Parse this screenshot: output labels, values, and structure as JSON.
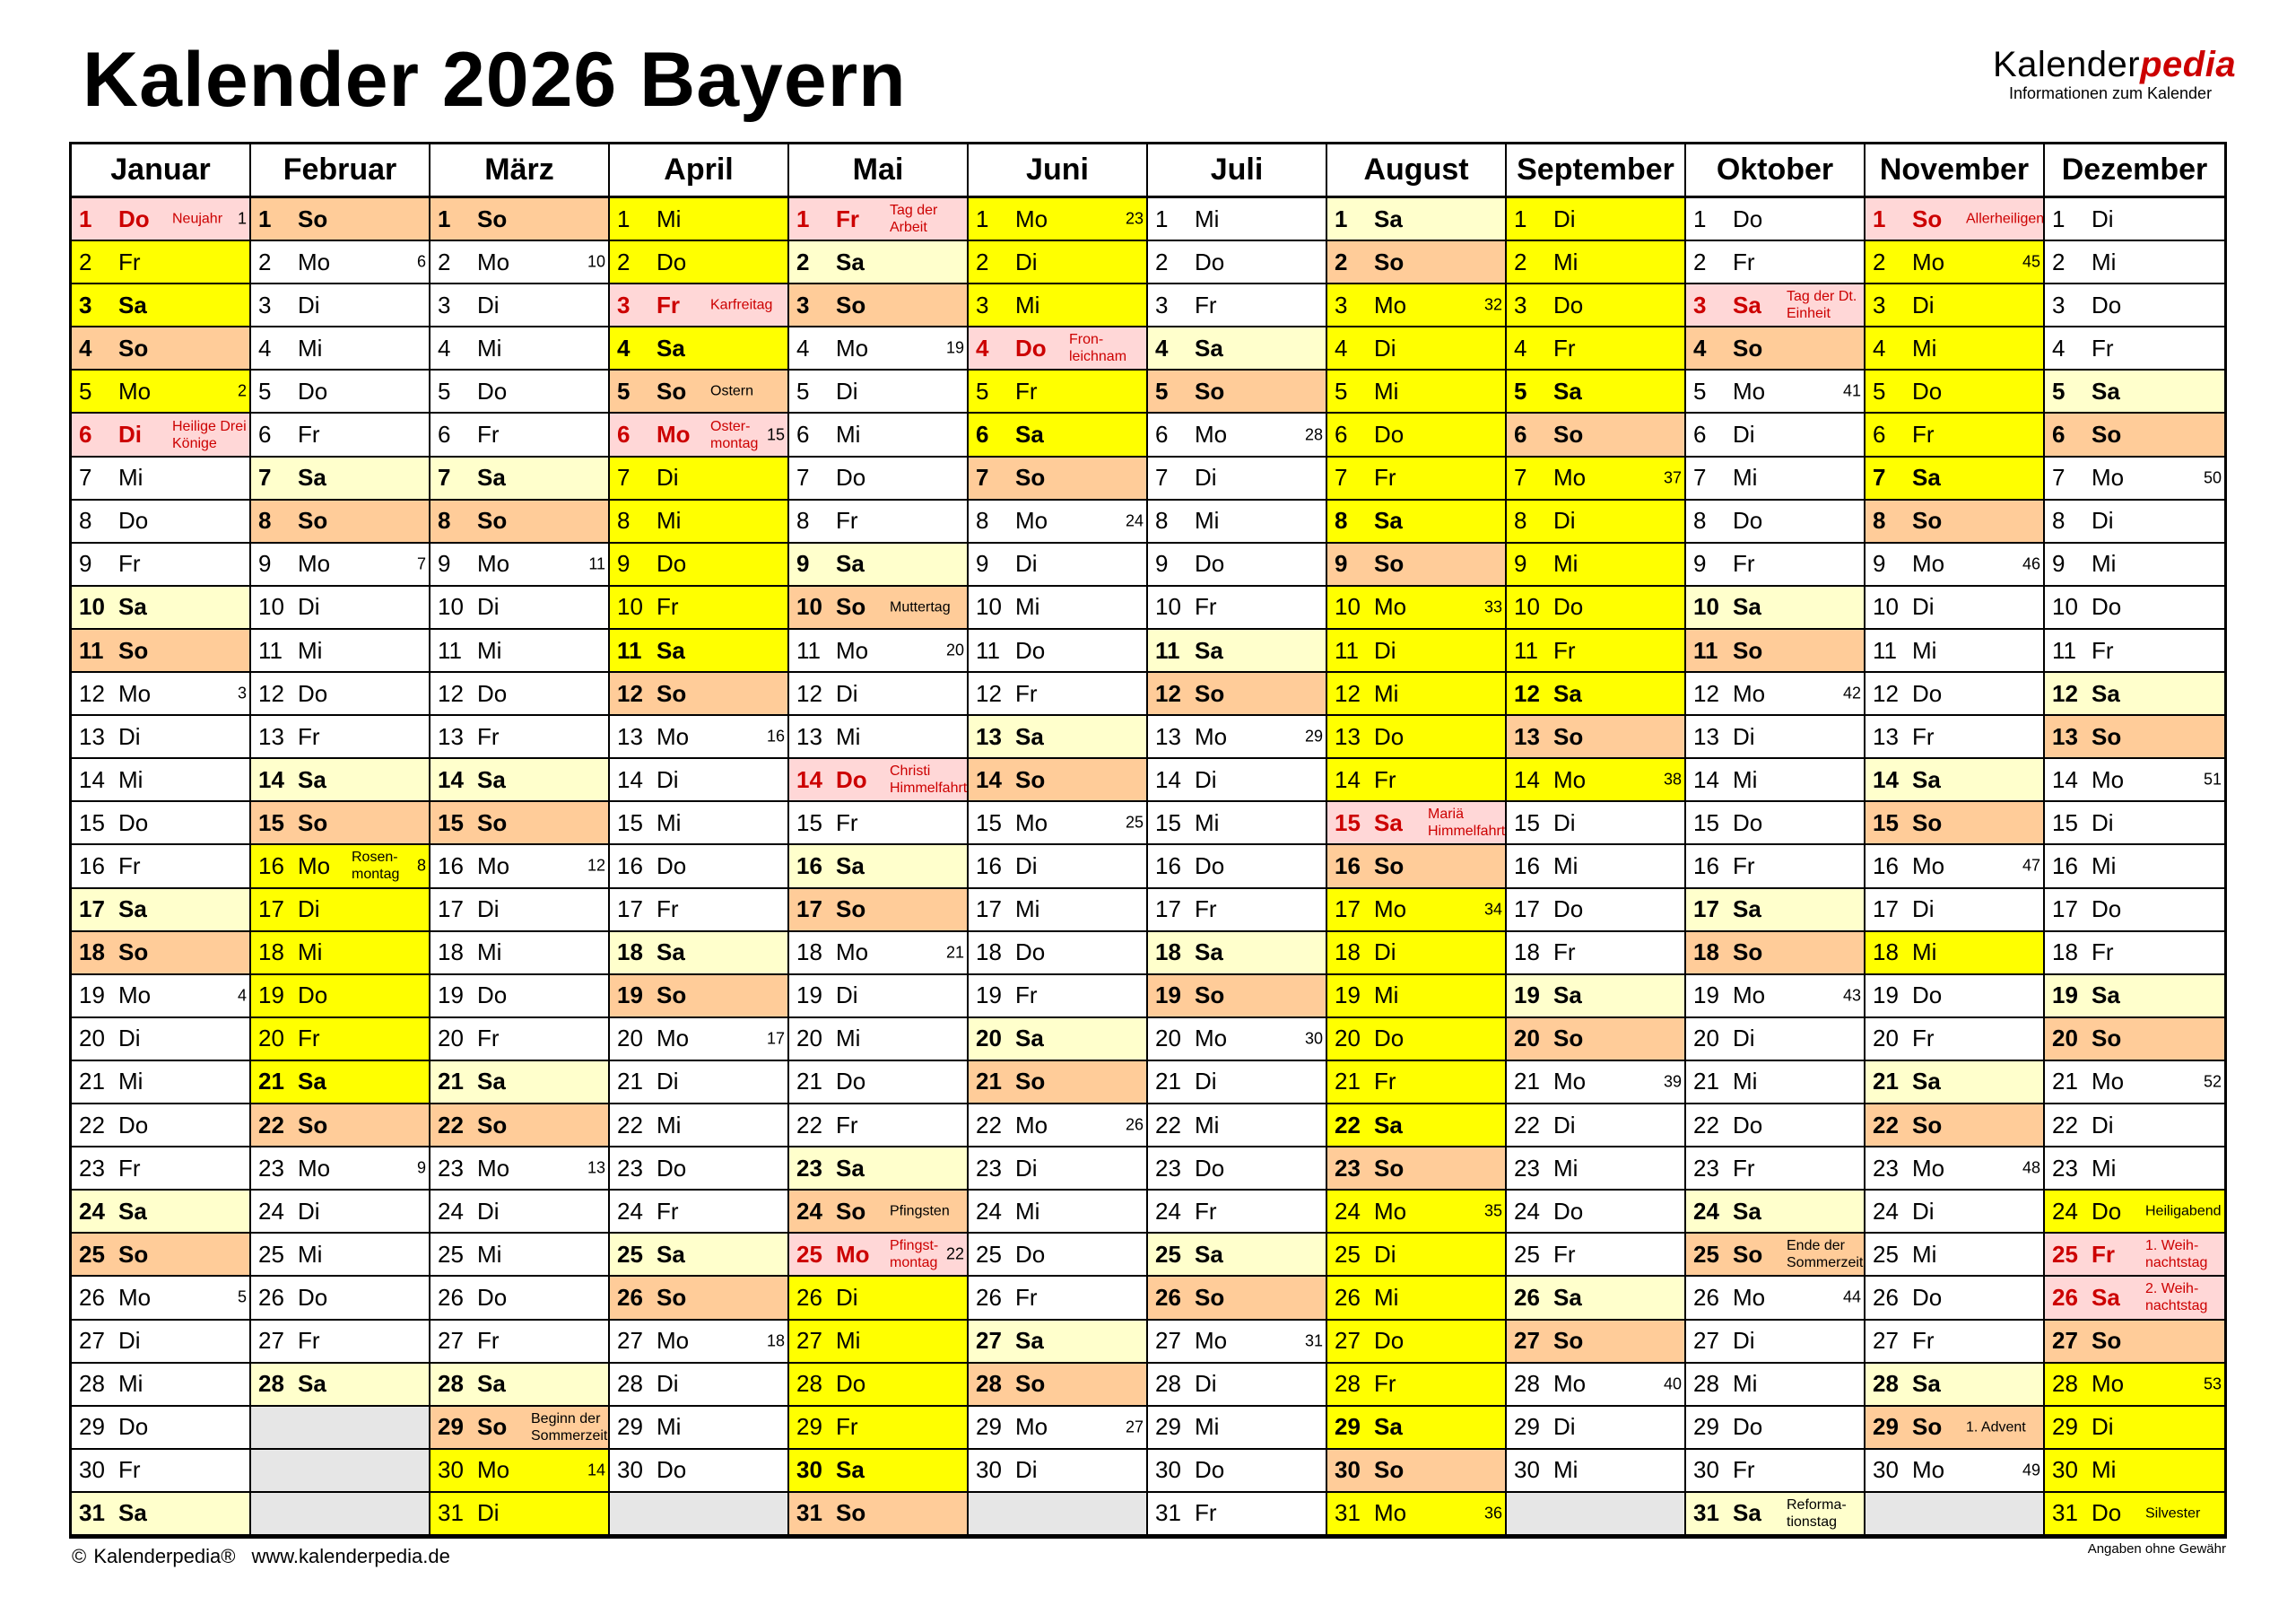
{
  "title": "Kalender 2026 Bayern",
  "logo": {
    "brand_part1": "Kalender",
    "brand_part2": "pedia",
    "tagline": "Informationen zum Kalender"
  },
  "footer": {
    "copyright": "© Kalenderpedia®",
    "url": "www.kalenderpedia.de",
    "disclaimer": "Angaben ohne Gewähr"
  },
  "colors": {
    "school_holiday": "#ffff00",
    "saturday": "#ffffcc",
    "sunday": "#ffcc99",
    "public_holiday": "#ffd7d7",
    "public_holiday_text": "#cc0000",
    "no_day": "#e6e6e6",
    "brand_accent": "#cc0000"
  },
  "months": [
    {
      "name": "Januar",
      "days": [
        "Do",
        "Fr",
        "Sa",
        "So",
        "Mo",
        "Di",
        "Mi",
        "Do",
        "Fr",
        "Sa",
        "So",
        "Mo",
        "Di",
        "Mi",
        "Do",
        "Fr",
        "Sa",
        "So",
        "Mo",
        "Di",
        "Mi",
        "Do",
        "Fr",
        "Sa",
        "So",
        "Mo",
        "Di",
        "Mi",
        "Do",
        "Fr",
        "Sa"
      ],
      "kw": {
        "1": "1",
        "5": "2",
        "12": "3",
        "19": "4",
        "26": "5"
      },
      "holidays": [
        1,
        6
      ],
      "ferien": [
        [
          1,
          5
        ]
      ],
      "notes": {
        "1": "Neujahr",
        "6": "Heilige Drei\nKönige"
      }
    },
    {
      "name": "Februar",
      "days": [
        "So",
        "Mo",
        "Di",
        "Mi",
        "Do",
        "Fr",
        "Sa",
        "So",
        "Mo",
        "Di",
        "Mi",
        "Do",
        "Fr",
        "Sa",
        "So",
        "Mo",
        "Di",
        "Mi",
        "Do",
        "Fr",
        "Sa",
        "So",
        "Mo",
        "Di",
        "Mi",
        "Do",
        "Fr",
        "Sa"
      ],
      "kw": {
        "2": "6",
        "9": "7",
        "16": "8",
        "23": "9"
      },
      "holidays": [],
      "ferien": [
        [
          16,
          21
        ]
      ],
      "notes": {
        "16": "Rosen-\nmontag"
      }
    },
    {
      "name": "März",
      "days": [
        "So",
        "Mo",
        "Di",
        "Mi",
        "Do",
        "Fr",
        "Sa",
        "So",
        "Mo",
        "Di",
        "Mi",
        "Do",
        "Fr",
        "Sa",
        "So",
        "Mo",
        "Di",
        "Mi",
        "Do",
        "Fr",
        "Sa",
        "So",
        "Mo",
        "Di",
        "Mi",
        "Do",
        "Fr",
        "Sa",
        "So",
        "Mo",
        "Di"
      ],
      "kw": {
        "2": "10",
        "9": "11",
        "16": "12",
        "23": "13",
        "30": "14"
      },
      "holidays": [],
      "ferien": [
        [
          30,
          31
        ]
      ],
      "notes": {
        "29": "Beginn der\nSommerzeit"
      }
    },
    {
      "name": "April",
      "days": [
        "Mi",
        "Do",
        "Fr",
        "Sa",
        "So",
        "Mo",
        "Di",
        "Mi",
        "Do",
        "Fr",
        "Sa",
        "So",
        "Mo",
        "Di",
        "Mi",
        "Do",
        "Fr",
        "Sa",
        "So",
        "Mo",
        "Di",
        "Mi",
        "Do",
        "Fr",
        "Sa",
        "So",
        "Mo",
        "Di",
        "Mi",
        "Do"
      ],
      "kw": {
        "6": "15",
        "13": "16",
        "20": "17",
        "27": "18"
      },
      "holidays": [
        3,
        6
      ],
      "ferien": [
        [
          1,
          11
        ]
      ],
      "notes": {
        "3": "Karfreitag",
        "5": "Ostern",
        "6": "Oster-\nmontag"
      }
    },
    {
      "name": "Mai",
      "days": [
        "Fr",
        "Sa",
        "So",
        "Mo",
        "Di",
        "Mi",
        "Do",
        "Fr",
        "Sa",
        "So",
        "Mo",
        "Di",
        "Mi",
        "Do",
        "Fr",
        "Sa",
        "So",
        "Mo",
        "Di",
        "Mi",
        "Do",
        "Fr",
        "Sa",
        "So",
        "Mo",
        "Di",
        "Mi",
        "Do",
        "Fr",
        "Sa",
        "So"
      ],
      "kw": {
        "4": "19",
        "11": "20",
        "18": "21",
        "25": "22"
      },
      "holidays": [
        1,
        14,
        25
      ],
      "ferien": [
        [
          26,
          30
        ]
      ],
      "notes": {
        "1": "Tag der\nArbeit",
        "10": "Muttertag",
        "14": "Christi\nHimmelfahrt",
        "24": "Pfingsten",
        "25": "Pfingst-\nmontag"
      }
    },
    {
      "name": "Juni",
      "days": [
        "Mo",
        "Di",
        "Mi",
        "Do",
        "Fr",
        "Sa",
        "So",
        "Mo",
        "Di",
        "Mi",
        "Do",
        "Fr",
        "Sa",
        "So",
        "Mo",
        "Di",
        "Mi",
        "Do",
        "Fr",
        "Sa",
        "So",
        "Mo",
        "Di",
        "Mi",
        "Do",
        "Fr",
        "Sa",
        "So",
        "Mo",
        "Di"
      ],
      "kw": {
        "1": "23",
        "8": "24",
        "15": "25",
        "22": "26",
        "29": "27"
      },
      "holidays": [
        4
      ],
      "ferien": [
        [
          1,
          6
        ]
      ],
      "notes": {
        "4": "Fron-\nleichnam"
      }
    },
    {
      "name": "Juli",
      "days": [
        "Mi",
        "Do",
        "Fr",
        "Sa",
        "So",
        "Mo",
        "Di",
        "Mi",
        "Do",
        "Fr",
        "Sa",
        "So",
        "Mo",
        "Di",
        "Mi",
        "Do",
        "Fr",
        "Sa",
        "So",
        "Mo",
        "Di",
        "Mi",
        "Do",
        "Fr",
        "Sa",
        "So",
        "Mo",
        "Di",
        "Mi",
        "Do",
        "Fr"
      ],
      "kw": {
        "6": "28",
        "13": "29",
        "20": "30",
        "27": "31"
      },
      "holidays": [],
      "ferien": [],
      "notes": {}
    },
    {
      "name": "August",
      "days": [
        "Sa",
        "So",
        "Mo",
        "Di",
        "Mi",
        "Do",
        "Fr",
        "Sa",
        "So",
        "Mo",
        "Di",
        "Mi",
        "Do",
        "Fr",
        "Sa",
        "So",
        "Mo",
        "Di",
        "Mi",
        "Do",
        "Fr",
        "Sa",
        "So",
        "Mo",
        "Di",
        "Mi",
        "Do",
        "Fr",
        "Sa",
        "So",
        "Mo"
      ],
      "kw": {
        "3": "32",
        "10": "33",
        "17": "34",
        "24": "35",
        "31": "36"
      },
      "holidays": [
        15
      ],
      "ferien": [
        [
          3,
          31
        ]
      ],
      "notes": {
        "15": "Mariä\nHimmelfahrt"
      }
    },
    {
      "name": "September",
      "days": [
        "Di",
        "Mi",
        "Do",
        "Fr",
        "Sa",
        "So",
        "Mo",
        "Di",
        "Mi",
        "Do",
        "Fr",
        "Sa",
        "So",
        "Mo",
        "Di",
        "Mi",
        "Do",
        "Fr",
        "Sa",
        "So",
        "Mo",
        "Di",
        "Mi",
        "Do",
        "Fr",
        "Sa",
        "So",
        "Mo",
        "Di",
        "Mi"
      ],
      "kw": {
        "7": "37",
        "14": "38",
        "21": "39",
        "28": "40"
      },
      "holidays": [],
      "ferien": [
        [
          1,
          14
        ]
      ],
      "notes": {}
    },
    {
      "name": "Oktober",
      "days": [
        "Do",
        "Fr",
        "Sa",
        "So",
        "Mo",
        "Di",
        "Mi",
        "Do",
        "Fr",
        "Sa",
        "So",
        "Mo",
        "Di",
        "Mi",
        "Do",
        "Fr",
        "Sa",
        "So",
        "Mo",
        "Di",
        "Mi",
        "Do",
        "Fr",
        "Sa",
        "So",
        "Mo",
        "Di",
        "Mi",
        "Do",
        "Fr",
        "Sa"
      ],
      "kw": {
        "5": "41",
        "12": "42",
        "19": "43",
        "26": "44"
      },
      "holidays": [
        3
      ],
      "ferien": [],
      "notes": {
        "3": "Tag der Dt.\nEinheit",
        "25": "Ende der\nSommerzeit",
        "31": "Reforma-\ntionstag"
      }
    },
    {
      "name": "November",
      "days": [
        "So",
        "Mo",
        "Di",
        "Mi",
        "Do",
        "Fr",
        "Sa",
        "So",
        "Mo",
        "Di",
        "Mi",
        "Do",
        "Fr",
        "Sa",
        "So",
        "Mo",
        "Di",
        "Mi",
        "Do",
        "Fr",
        "Sa",
        "So",
        "Mo",
        "Di",
        "Mi",
        "Do",
        "Fr",
        "Sa",
        "So",
        "Mo"
      ],
      "kw": {
        "2": "45",
        "9": "46",
        "16": "47",
        "23": "48",
        "30": "49"
      },
      "holidays": [
        1
      ],
      "ferien": [
        [
          2,
          7
        ],
        [
          18,
          18
        ]
      ],
      "notes": {
        "1": "Allerheiligen",
        "29": "1. Advent"
      }
    },
    {
      "name": "Dezember",
      "days": [
        "Di",
        "Mi",
        "Do",
        "Fr",
        "Sa",
        "So",
        "Mo",
        "Di",
        "Mi",
        "Do",
        "Fr",
        "Sa",
        "So",
        "Mo",
        "Di",
        "Mi",
        "Do",
        "Fr",
        "Sa",
        "So",
        "Mo",
        "Di",
        "Mi",
        "Do",
        "Fr",
        "Sa",
        "So",
        "Mo",
        "Di",
        "Mi",
        "Do"
      ],
      "kw": {
        "7": "50",
        "14": "51",
        "21": "52",
        "28": "53"
      },
      "holidays": [
        25,
        26
      ],
      "ferien": [
        [
          24,
          31
        ]
      ],
      "notes": {
        "24": "Heiligabend",
        "25": "1. Weih-\nnachtstag",
        "26": "2. Weih-\nnachtstag",
        "31": "Silvester"
      }
    }
  ]
}
